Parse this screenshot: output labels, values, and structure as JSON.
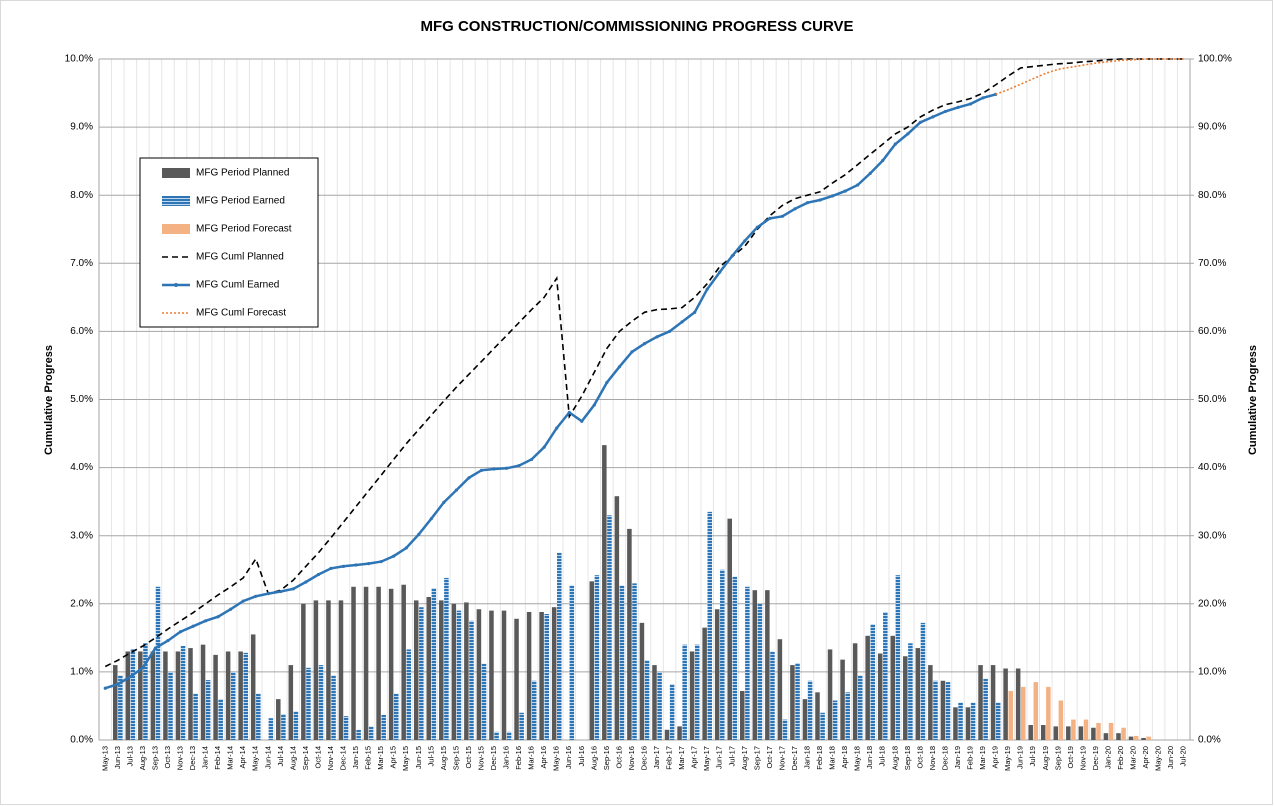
{
  "chart_data": {
    "type": "combo",
    "title": "MFG CONSTRUCTION/COMMISSIONING PROGRESS CURVE",
    "y_label": "Cumulative Progress",
    "y2_label": "Cumulative Progress",
    "categories": [
      "May-13",
      "Jun-13",
      "Jul-13",
      "Aug-13",
      "Sep-13",
      "Oct-13",
      "Nov-13",
      "Dec-13",
      "Jan-14",
      "Feb-14",
      "Mar-14",
      "Apr-14",
      "May-14",
      "Jun-14",
      "Jul-14",
      "Aug-14",
      "Sep-14",
      "Oct-14",
      "Nov-14",
      "Dec-14",
      "Jan-15",
      "Feb-15",
      "Mar-15",
      "Apr-15",
      "May-15",
      "Jun-15",
      "Jul-15",
      "Aug-15",
      "Sep-15",
      "Oct-15",
      "Nov-15",
      "Dec-15",
      "Jan-16",
      "Feb-16",
      "Mar-16",
      "Apr-16",
      "May-16",
      "Jun-16",
      "Jul-16",
      "Aug-16",
      "Sep-16",
      "Oct-16",
      "Nov-16",
      "Dec-16",
      "Jan-17",
      "Feb-17",
      "Mar-17",
      "Apr-17",
      "May-17",
      "Jun-17",
      "Jul-17",
      "Aug-17",
      "Sep-17",
      "Oct-17",
      "Nov-17",
      "Dec-17",
      "Jan-18",
      "Feb-18",
      "Mar-18",
      "Apr-18",
      "May-18",
      "Jun-18",
      "Jul-18",
      "Aug-18",
      "Sep-18",
      "Oct-18",
      "Nov-18",
      "Dec-18",
      "Jan-19",
      "Feb-19",
      "Mar-19",
      "Apr-19",
      "May-19",
      "Jun-19",
      "Jul-19",
      "Aug-19",
      "Sep-19",
      "Oct-19",
      "Nov-19",
      "Dec-19",
      "Jan-20",
      "Feb-20",
      "Mar-20",
      "Apr-20",
      "May-20",
      "Jun-20",
      "Jul-20"
    ],
    "ylim": [
      0,
      10
    ],
    "yticks": [
      {
        "value": 0,
        "label": "0.0%"
      },
      {
        "value": 1,
        "label": "1.0%"
      },
      {
        "value": 2,
        "label": "2.0%"
      },
      {
        "value": 3,
        "label": "3.0%"
      },
      {
        "value": 4,
        "label": "4.0%"
      },
      {
        "value": 5,
        "label": "5.0%"
      },
      {
        "value": 6,
        "label": "6.0%"
      },
      {
        "value": 7,
        "label": "7.0%"
      },
      {
        "value": 8,
        "label": "8.0%"
      },
      {
        "value": 9,
        "label": "9.0%"
      },
      {
        "value": 10,
        "label": "10.0%"
      }
    ],
    "y2lim": [
      0,
      100
    ],
    "y2ticks": [
      {
        "value": 0,
        "label": "0.0%"
      },
      {
        "value": 10,
        "label": "10.0%"
      },
      {
        "value": 20,
        "label": "20.0%"
      },
      {
        "value": 30,
        "label": "30.0%"
      },
      {
        "value": 40,
        "label": "40.0%"
      },
      {
        "value": 50,
        "label": "50.0%"
      },
      {
        "value": 60,
        "label": "60.0%"
      },
      {
        "value": 70,
        "label": "70.0%"
      },
      {
        "value": 80,
        "label": "80.0%"
      },
      {
        "value": 90,
        "label": "90.0%"
      },
      {
        "value": 100,
        "label": "100.0%"
      }
    ],
    "grid": true,
    "legend": "upper left",
    "series": [
      {
        "name": "MFG Period Planned",
        "type": "bar",
        "color": "#595959",
        "values": [
          0,
          1.1,
          1.3,
          1.3,
          1.3,
          1.3,
          1.3,
          1.35,
          1.4,
          1.25,
          1.3,
          1.3,
          1.55,
          0,
          0.6,
          1.1,
          2.0,
          2.05,
          2.05,
          2.05,
          2.25,
          2.25,
          2.25,
          2.22,
          2.28,
          2.05,
          2.1,
          2.05,
          2.0,
          2.02,
          1.92,
          1.9,
          1.9,
          1.78,
          1.88,
          1.88,
          1.95,
          0,
          0,
          2.33,
          4.33,
          3.58,
          3.1,
          1.72,
          1.1,
          0.15,
          0.2,
          1.3,
          1.65,
          1.92,
          3.25,
          0.72,
          2.2,
          2.2,
          1.48,
          1.1,
          0.6,
          0.7,
          1.33,
          1.18,
          1.42,
          1.53,
          1.27,
          1.53,
          1.23,
          1.35,
          1.1,
          0.87,
          0.48,
          0.48,
          1.1,
          1.1,
          1.05,
          1.05,
          0.22,
          0.22,
          0.2,
          0.2,
          0.2,
          0.18,
          0.1,
          0.1,
          0.05,
          0.03,
          0,
          0,
          0
        ]
      },
      {
        "name": "MFG Period Earned",
        "type": "bar",
        "color": "#2e75b6",
        "values": [
          0,
          0.95,
          1.33,
          1.42,
          2.25,
          1.0,
          1.38,
          0.68,
          0.88,
          0.6,
          1.0,
          1.28,
          0.68,
          0.32,
          0.38,
          0.42,
          1.06,
          1.1,
          0.95,
          0.35,
          0.15,
          0.2,
          0.37,
          0.68,
          1.33,
          1.95,
          2.23,
          2.38,
          1.9,
          1.75,
          1.12,
          0.12,
          0.12,
          0.4,
          0.87,
          1.85,
          2.75,
          2.27,
          0,
          2.42,
          3.3,
          2.27,
          2.3,
          1.17,
          1.0,
          0.82,
          1.4,
          1.4,
          3.35,
          2.5,
          2.4,
          2.25,
          2.0,
          1.3,
          0.3,
          1.13,
          0.87,
          0.4,
          0.58,
          0.7,
          0.95,
          1.7,
          1.88,
          2.42,
          1.42,
          1.72,
          0.87,
          0.85,
          0.55,
          0.55,
          0.9,
          0.55,
          null,
          null,
          null,
          null,
          null,
          null,
          null,
          null,
          null,
          null,
          null,
          null,
          null,
          null,
          null
        ]
      },
      {
        "name": "MFG Period Forecast",
        "type": "bar",
        "color": "#f4b183",
        "values": [
          null,
          null,
          null,
          null,
          null,
          null,
          null,
          null,
          null,
          null,
          null,
          null,
          null,
          null,
          null,
          null,
          null,
          null,
          null,
          null,
          null,
          null,
          null,
          null,
          null,
          null,
          null,
          null,
          null,
          null,
          null,
          null,
          null,
          null,
          null,
          null,
          null,
          null,
          null,
          null,
          null,
          null,
          null,
          null,
          null,
          null,
          null,
          null,
          null,
          null,
          null,
          null,
          null,
          null,
          null,
          null,
          null,
          null,
          null,
          null,
          null,
          null,
          null,
          null,
          null,
          null,
          null,
          null,
          null,
          null,
          null,
          null,
          0.72,
          0.78,
          0.85,
          0.78,
          0.58,
          0.3,
          0.3,
          0.25,
          0.25,
          0.18,
          0.06,
          0.05,
          0,
          0,
          0
        ]
      },
      {
        "name": "MFG Cuml Planned",
        "type": "line",
        "axis": "y2",
        "color": "#000000",
        "line_style": "dashed",
        "values": [
          10.8,
          11.7,
          12.8,
          13.8,
          15,
          16.3,
          17.5,
          18.7,
          20,
          21.3,
          22.5,
          23.8,
          26.6,
          21.5,
          22,
          23.5,
          25.5,
          27.5,
          29.7,
          32,
          34.3,
          36.6,
          38.9,
          41.2,
          43.5,
          45.6,
          47.7,
          49.8,
          51.8,
          53.7,
          55.6,
          57.5,
          59.4,
          61.3,
          63.2,
          65,
          67.8,
          47.5,
          50.5,
          54,
          57.5,
          60,
          61.5,
          62.8,
          63.2,
          63.3,
          63.5,
          65,
          67,
          69.5,
          71,
          72.5,
          75,
          77,
          78.5,
          79.5,
          80,
          80.5,
          81.8,
          83,
          84.5,
          86,
          87.5,
          89,
          90,
          91.5,
          92.5,
          93.3,
          93.7,
          94.2,
          95,
          96.2,
          97.5,
          98.7,
          98.9,
          99.1,
          99.3,
          99.4,
          99.6,
          99.7,
          99.9,
          100,
          100,
          100,
          100,
          100,
          100
        ]
      },
      {
        "name": "MFG Cuml Earned",
        "type": "line",
        "axis": "y2",
        "color": "#2e75b6",
        "line_style": "solid",
        "marker": "circle",
        "values": [
          7.6,
          8.2,
          9.3,
          10.6,
          13.5,
          14.6,
          15.9,
          16.7,
          17.5,
          18.1,
          19.2,
          20.4,
          21.1,
          21.5,
          21.8,
          22.2,
          23.2,
          24.3,
          25.2,
          25.5,
          25.7,
          25.9,
          26.2,
          27,
          28.2,
          30.2,
          32.5,
          34.9,
          36.7,
          38.5,
          39.6,
          39.8,
          39.9,
          40.3,
          41.2,
          43,
          45.8,
          48.1,
          46.8,
          49.2,
          52.5,
          54.8,
          57,
          58.2,
          59.2,
          60,
          61.4,
          62.8,
          66.2,
          68.7,
          71.1,
          73.3,
          75.3,
          76.6,
          76.9,
          78,
          78.9,
          79.3,
          79.9,
          80.6,
          81.5,
          83.2,
          85.1,
          87.5,
          89,
          90.7,
          91.5,
          92.3,
          92.9,
          93.4,
          94.3,
          94.8,
          null,
          null,
          null,
          null,
          null,
          null,
          null,
          null,
          null,
          null,
          null,
          null,
          null,
          null,
          null
        ]
      },
      {
        "name": "MFG Cuml Forecast",
        "type": "line",
        "axis": "y2",
        "color": "#ed7d31",
        "line_style": "dotted",
        "values": [
          null,
          null,
          null,
          null,
          null,
          null,
          null,
          null,
          null,
          null,
          null,
          null,
          null,
          null,
          null,
          null,
          null,
          null,
          null,
          null,
          null,
          null,
          null,
          null,
          null,
          null,
          null,
          null,
          null,
          null,
          null,
          null,
          null,
          null,
          null,
          null,
          null,
          null,
          null,
          null,
          null,
          null,
          null,
          null,
          null,
          null,
          null,
          null,
          null,
          null,
          null,
          null,
          null,
          null,
          null,
          null,
          null,
          null,
          null,
          null,
          null,
          null,
          null,
          null,
          null,
          null,
          null,
          null,
          null,
          null,
          null,
          94.8,
          95.5,
          96.3,
          97.1,
          97.9,
          98.5,
          98.8,
          99.1,
          99.4,
          99.6,
          99.8,
          99.9,
          100,
          100,
          100,
          100
        ]
      }
    ]
  }
}
